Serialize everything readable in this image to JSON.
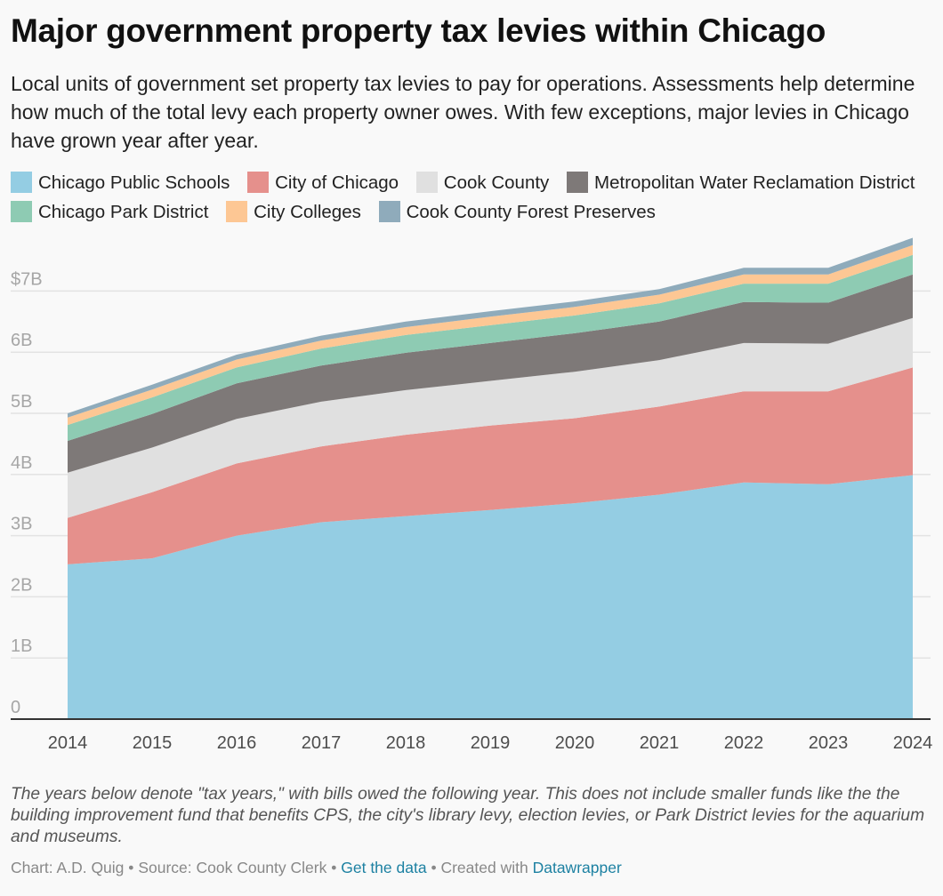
{
  "chart_data": {
    "type": "area",
    "stacked": true,
    "title": "Major government property tax levies within Chicago",
    "subtitle": "Local units of government set property tax levies to pay for operations. Assessments help determine how much of the total levy each property owner owes. With few exceptions, major levies in Chicago have grown year after year.",
    "x": [
      "2014",
      "2015",
      "2016",
      "2017",
      "2018",
      "2019",
      "2020",
      "2021",
      "2022",
      "2023",
      "2024"
    ],
    "series": [
      {
        "name": "Chicago Public Schools",
        "color": "#94cde3",
        "values": [
          2.53,
          2.63,
          3.0,
          3.22,
          3.32,
          3.42,
          3.53,
          3.67,
          3.87,
          3.84,
          3.99
        ]
      },
      {
        "name": "City of Chicago",
        "color": "#e5908c",
        "values": [
          0.76,
          1.08,
          1.18,
          1.24,
          1.33,
          1.38,
          1.39,
          1.44,
          1.49,
          1.52,
          1.76
        ]
      },
      {
        "name": "Cook County",
        "color": "#e0e0e0",
        "values": [
          0.74,
          0.73,
          0.73,
          0.73,
          0.73,
          0.73,
          0.76,
          0.76,
          0.79,
          0.78,
          0.81
        ]
      },
      {
        "name": "Metropolitan Water Reclamation District",
        "color": "#7e7978",
        "values": [
          0.52,
          0.55,
          0.58,
          0.59,
          0.61,
          0.62,
          0.63,
          0.63,
          0.67,
          0.67,
          0.71
        ]
      },
      {
        "name": "Chicago Park District",
        "color": "#8ecbb3",
        "values": [
          0.26,
          0.27,
          0.26,
          0.28,
          0.29,
          0.29,
          0.29,
          0.3,
          0.3,
          0.31,
          0.32
        ]
      },
      {
        "name": "City Colleges",
        "color": "#fdc794",
        "values": [
          0.12,
          0.13,
          0.13,
          0.13,
          0.13,
          0.14,
          0.14,
          0.14,
          0.15,
          0.15,
          0.16
        ]
      },
      {
        "name": "Cook County Forest Preserves",
        "color": "#8fabbb",
        "values": [
          0.07,
          0.08,
          0.08,
          0.08,
          0.09,
          0.09,
          0.09,
          0.09,
          0.11,
          0.11,
          0.12
        ]
      }
    ],
    "ylim": [
      0,
      8
    ],
    "y_ticks": [
      0,
      1,
      2,
      3,
      4,
      5,
      6,
      7
    ],
    "y_tick_labels": [
      "0",
      "1B",
      "2B",
      "3B",
      "4B",
      "5B",
      "6B",
      "$7B"
    ],
    "grid": true,
    "legend_position": "top"
  },
  "notes": "The years below denote \"tax years,\" with bills owed the following year. This does not include smaller funds like the the building improvement fund that benefits CPS, the city's library levy, election levies, or Park District levies for the aquarium and museums.",
  "footer": {
    "credit": "Chart: A.D. Quig",
    "source": "Source: Cook County Clerk",
    "separator": "•",
    "get_data": "Get the data",
    "created_with": "Created with",
    "tool": "Datawrapper"
  }
}
